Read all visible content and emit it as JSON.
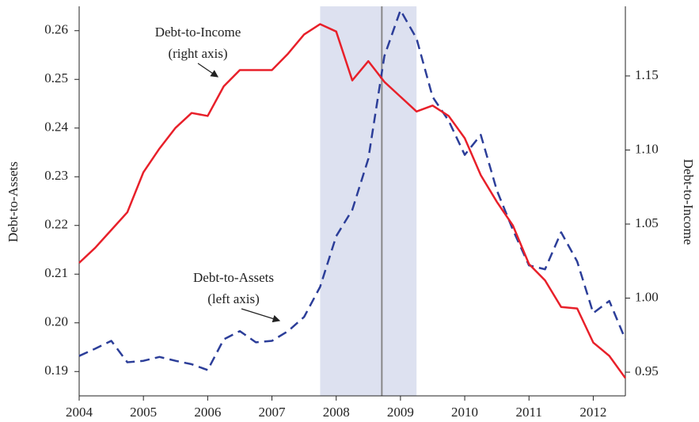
{
  "chart_data": {
    "type": "line",
    "x": [
      2004,
      2004.25,
      2004.5,
      2004.75,
      2005,
      2005.25,
      2005.5,
      2005.75,
      2006,
      2006.25,
      2006.5,
      2006.75,
      2007,
      2007.25,
      2007.5,
      2007.75,
      2008,
      2008.25,
      2008.5,
      2008.75,
      2009,
      2009.25,
      2009.5,
      2009.75,
      2010,
      2010.25,
      2010.5,
      2010.75,
      2011,
      2011.25,
      2011.5,
      2011.75,
      2012,
      2012.25,
      2012.5
    ],
    "series": [
      {
        "name": "Debt-to-Assets",
        "color": "#2c3e99",
        "dashed": true,
        "axis": "y",
        "values": [
          0.1932,
          0.1947,
          0.1963,
          0.1919,
          0.1922,
          0.193,
          0.1922,
          0.1915,
          0.1903,
          0.1966,
          0.1983,
          0.196,
          0.1963,
          0.1983,
          0.2012,
          0.2074,
          0.2178,
          0.2232,
          0.2337,
          0.2548,
          0.2642,
          0.2584,
          0.2464,
          0.2415,
          0.2345,
          0.2386,
          0.2272,
          0.2191,
          0.2118,
          0.211,
          0.2186,
          0.2126,
          0.202,
          0.2045,
          0.1966
        ]
      },
      {
        "name": "Debt-to-Income",
        "color": "#e8202a",
        "dashed": false,
        "axis": "y2",
        "values": [
          1.0238,
          1.034,
          1.046,
          1.058,
          1.085,
          1.101,
          1.115,
          1.125,
          1.123,
          1.143,
          1.154,
          1.154,
          1.154,
          1.165,
          1.178,
          1.185,
          1.18,
          1.147,
          1.16,
          1.146,
          1.136,
          1.126,
          1.13,
          1.123,
          1.108,
          1.083,
          1.065,
          1.049,
          1.023,
          1.012,
          0.994,
          0.993,
          0.97,
          0.961,
          0.946
        ]
      }
    ],
    "xlim": [
      2004,
      2012.5
    ],
    "xticks": [
      2004,
      2005,
      2006,
      2007,
      2008,
      2009,
      2010,
      2011,
      2012
    ],
    "ylim": [
      0.185,
      0.265
    ],
    "yticks": [
      0.19,
      {
        "value": 0.2,
        "label": "0.20"
      },
      0.21,
      0.22,
      0.23,
      0.24,
      0.25,
      0.26
    ],
    "y2lim": [
      0.934,
      1.197
    ],
    "y2ticks": [
      0.95,
      {
        "value": 1.0,
        "label": "1.00"
      },
      1.05,
      {
        "value": 1.1,
        "label": "1.10"
      },
      1.15
    ],
    "ylabel": "Debt-to-Assets",
    "y2label": "Debt-to-Income",
    "shaded_span": [
      2007.75,
      2009.25
    ],
    "shade_color": "#dde1f0",
    "vline": 2008.71,
    "vline_color": "#888888",
    "annotations": [
      {
        "lines": [
          "Debt-to-Income",
          "(right axis)"
        ],
        "target_series": 1
      },
      {
        "lines": [
          "Debt-to-Assets",
          "(left axis)"
        ],
        "target_series": 0
      }
    ]
  }
}
